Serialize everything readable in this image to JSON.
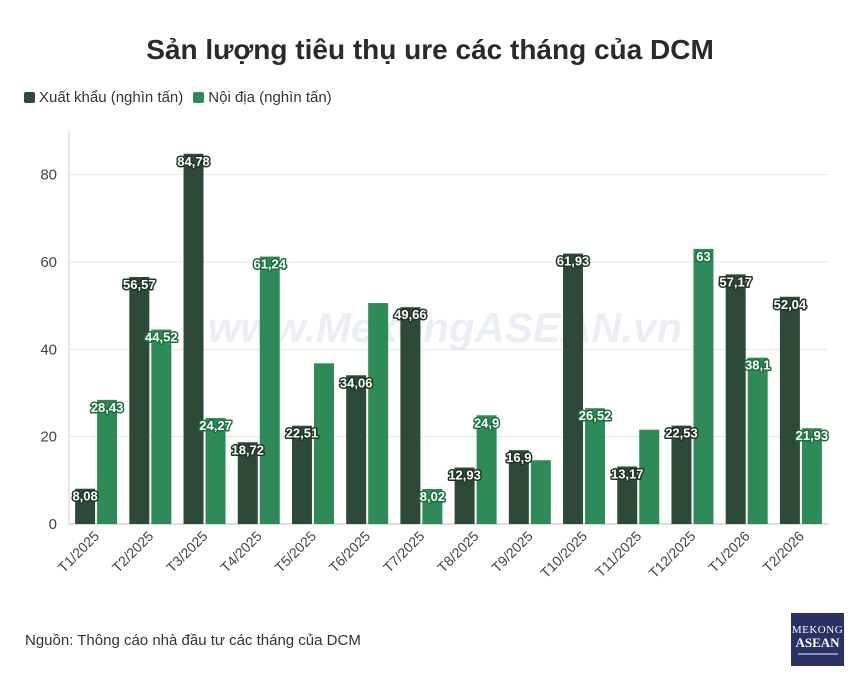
{
  "chart_data": {
    "type": "bar",
    "title": "Sản lượng tiêu thụ ure các tháng của DCM",
    "categories": [
      "T1/2025",
      "T2/2025",
      "T3/2025",
      "T4/2025",
      "T5/2025",
      "T6/2025",
      "T7/2025",
      "T8/2025",
      "T9/2025",
      "T10/2025",
      "T11/2025",
      "T12/2025",
      "T1/2026",
      "T2/2026"
    ],
    "series": [
      {
        "name": "Xuất khẩu (nghìn tấn)",
        "color": "#2d4a38",
        "values": [
          8.08,
          56.57,
          84.78,
          18.72,
          22.51,
          34.06,
          49.66,
          12.93,
          16.9,
          61.93,
          13.17,
          22.53,
          57.17,
          52.04
        ],
        "labels": [
          "8,08",
          "56,57",
          "84,78",
          "18,72",
          "22,51",
          "34,06",
          "49,66",
          "12,93",
          "16,9",
          "61,93",
          "13,17",
          "22,53",
          "57,17",
          "52,04"
        ]
      },
      {
        "name": "Nội địa (nghìn tấn)",
        "color": "#2e8b57",
        "values": [
          28.43,
          44.52,
          24.27,
          61.24,
          36.8,
          50.6,
          8.02,
          24.9,
          14.6,
          26.52,
          21.6,
          63,
          38.1,
          21.93
        ],
        "labels": [
          "28,43",
          "44,52",
          "24,27",
          "61,24",
          "",
          "",
          "8,02",
          "24,9",
          "",
          "26,52",
          "",
          "63",
          "38,1",
          "21,93"
        ]
      }
    ],
    "yticks": [
      0,
      20,
      40,
      60,
      80
    ],
    "ylim": [
      0,
      90
    ],
    "grid": true,
    "xlabel": "",
    "ylabel": "",
    "watermark": "www.MekongASEAN.vn",
    "source": "Nguồn: Thông cáo nhà đầu tư các tháng của DCM"
  },
  "logo": {
    "line1": "MEKONG",
    "line2": "ASEAN"
  }
}
